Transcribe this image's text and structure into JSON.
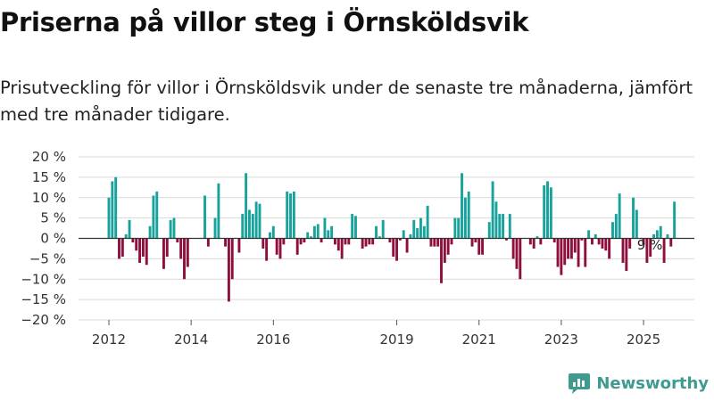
{
  "title": "Priserna på villor steg i Örnsköldsvik",
  "subtitle": "Prisutveckling för villor i Örnsköldsvik under de senaste tre månaderna, jämfört med tre månader tidigare.",
  "brand": {
    "name": "Newsworthy",
    "color": "#3f9a8f",
    "icon": "bar-chart-logo-icon"
  },
  "colors": {
    "positive": "#17a39b",
    "negative": "#8e0f3d",
    "grid": "#d9d9d9",
    "axis": "#333333"
  },
  "chart_data": {
    "type": "bar",
    "ylim": [
      -20,
      20
    ],
    "yticks": [
      20,
      15,
      10,
      5,
      0,
      -5,
      -10,
      -15,
      -20
    ],
    "ytick_labels": [
      "20 %",
      "15 %",
      "10 %",
      "5 %",
      "0 %",
      "−5 %",
      "−10 %",
      "−15 %",
      "−20 %"
    ],
    "xticks": [
      {
        "label": "2012",
        "index": 0
      },
      {
        "label": "2014",
        "index": 24
      },
      {
        "label": "2016",
        "index": 48
      },
      {
        "label": "2019",
        "index": 84
      },
      {
        "label": "2021",
        "index": 108
      },
      {
        "label": "2023",
        "index": 132
      },
      {
        "label": "2025",
        "index": 156
      }
    ],
    "grid": true,
    "start_month": "2012-01",
    "values": [
      10,
      14,
      15,
      -5,
      -4.5,
      1,
      4.5,
      -1,
      -3,
      -6,
      -4.5,
      -6.5,
      3,
      10.5,
      11.5,
      0,
      -7.5,
      -4.5,
      4.5,
      5,
      -1,
      -5,
      -10,
      -7,
      0,
      0,
      0,
      0,
      10.5,
      -2,
      0,
      5,
      13.5,
      0,
      -2,
      -15.5,
      -10,
      0,
      -3.5,
      6,
      16,
      7,
      6,
      9,
      8.5,
      -2.5,
      -5.5,
      1.5,
      3,
      -4,
      -5,
      -1.5,
      11.5,
      11,
      11.5,
      -4,
      -1.5,
      -1,
      1.5,
      0.5,
      3,
      3.5,
      -1,
      5,
      2,
      3,
      -1.5,
      -3,
      -5,
      -1.5,
      -1.5,
      6,
      5.5,
      0,
      -2.5,
      -2,
      -1.5,
      -1.5,
      3,
      0.5,
      4.5,
      0,
      -1,
      -4.5,
      -5.5,
      -0.5,
      2,
      -3.5,
      1,
      4.5,
      2.5,
      5,
      3,
      8,
      -2,
      -2,
      -2,
      -11,
      -6,
      -4,
      -1.5,
      5,
      5,
      16,
      10,
      11.5,
      -2,
      -1,
      -4,
      -4,
      0,
      4,
      14,
      9,
      6,
      6,
      -0.5,
      6,
      -5,
      -7.5,
      -10,
      0,
      0,
      -1.5,
      -2.5,
      0.5,
      -1.5,
      13,
      14,
      12.5,
      -1,
      -7,
      -9,
      -6.5,
      -5,
      -5,
      -3.5,
      -7,
      -0.5,
      -7,
      2,
      -1.5,
      1,
      -1.5,
      -2.5,
      -3,
      -5,
      4,
      6,
      11,
      -6,
      -8,
      -2.5,
      10,
      7,
      0,
      -1.5,
      -6,
      -4.5,
      1,
      2,
      3,
      -6,
      1,
      -2,
      9
    ],
    "annotations": [
      {
        "text": "9 %",
        "index": 162
      }
    ]
  }
}
